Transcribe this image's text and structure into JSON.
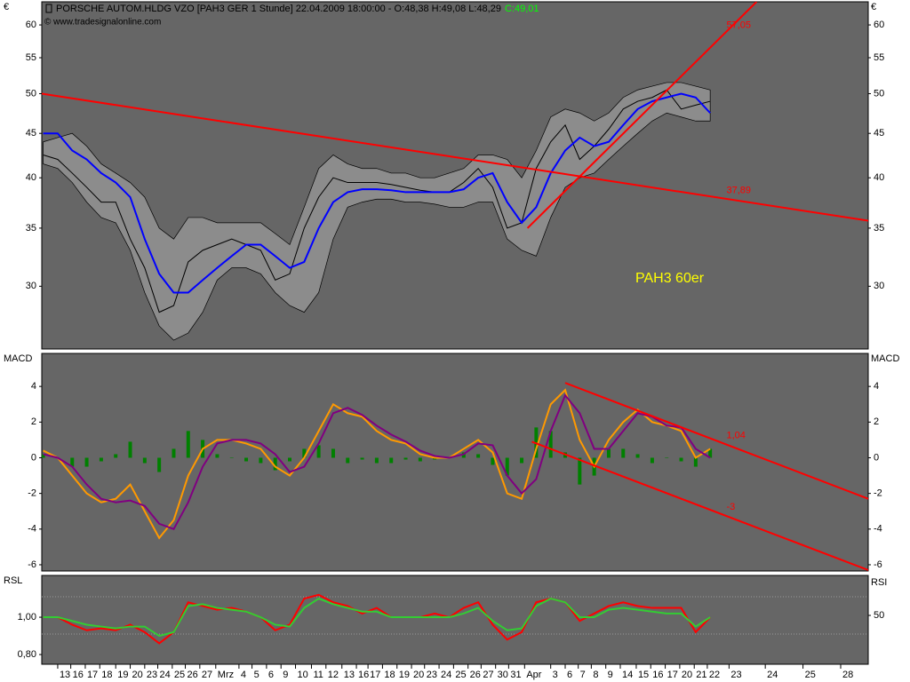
{
  "chart_data": [
    {
      "type": "line",
      "title": "PORSCHE AUTOM.HLDG VZO [PAH3 GER  1 Stunde] 22.04.2009 18:00:00 - O:48,38 H:49,08 L:48,29",
      "last_label": "C:49,01",
      "subtitle": "© www.tradesignalonline.com",
      "annotation": "PAH3 60er",
      "y_label": "€",
      "mirror_yticks": true,
      "log_scale": true,
      "xlim": [
        -1.1,
        55.9
      ],
      "ylim": [
        25.4,
        63.8
      ],
      "yticks": [
        30,
        35,
        40,
        45,
        50,
        55,
        60
      ],
      "x": [
        -1,
        0,
        1,
        2,
        3,
        4,
        5,
        6,
        7,
        8,
        9,
        10,
        11,
        12,
        13,
        14,
        15,
        16,
        17,
        18,
        19,
        20,
        21,
        22,
        23,
        24,
        25,
        26,
        27,
        28,
        29,
        30,
        31,
        32,
        33,
        34,
        35,
        36,
        37,
        38,
        39,
        40,
        41,
        42,
        43,
        44,
        45
      ],
      "band": {
        "color": "#8c8c8c",
        "upper": [
          44,
          44.5,
          45,
          43.5,
          41.5,
          40.5,
          39.5,
          38,
          35,
          34,
          36,
          36,
          35.5,
          35.5,
          35.5,
          35.5,
          34.5,
          33.5,
          37,
          41,
          42.5,
          41.5,
          41,
          41,
          40.5,
          40.5,
          40,
          40,
          40.5,
          41,
          42.5,
          42.5,
          42,
          40,
          43,
          47,
          48,
          47.5,
          46.5,
          47.5,
          49.5,
          50.5,
          51,
          51.5,
          51.5,
          51,
          50.5
        ],
        "lower": [
          41.5,
          41,
          39.5,
          37.5,
          36,
          35.5,
          33,
          29.5,
          27,
          26,
          26.5,
          28,
          30.5,
          31.5,
          31.5,
          31,
          29.5,
          28.5,
          28,
          29.5,
          34,
          37,
          37.5,
          37.8,
          37.8,
          37.5,
          37.5,
          37.3,
          37,
          37,
          37.5,
          37.5,
          34,
          33,
          32.5,
          36,
          39,
          40,
          40.5,
          42,
          43.5,
          45,
          46.5,
          47.5,
          47,
          46.5,
          46.5
        ]
      },
      "series": [
        {
          "color": "#000000",
          "width": 1,
          "values": [
            42.5,
            42,
            40.5,
            39,
            37.5,
            37.5,
            34,
            31.5,
            28,
            28.5,
            32,
            33,
            33.5,
            34,
            33.5,
            33,
            30.5,
            31,
            35,
            38,
            40,
            39.5,
            39.5,
            39.5,
            39.3,
            39,
            38.7,
            38.5,
            38.5,
            39.5,
            41,
            39,
            35,
            35.5,
            41,
            44,
            46,
            42,
            43.5,
            45.5,
            48,
            49,
            49.5,
            50.5,
            48,
            48.5,
            49
          ]
        },
        {
          "color": "#0000ff",
          "width": 2,
          "values": [
            45,
            45,
            43,
            42,
            40.5,
            39.5,
            38,
            34,
            31,
            29.5,
            29.5,
            30.5,
            31.5,
            32.5,
            33.5,
            33.5,
            32.5,
            31.5,
            32,
            35,
            37.5,
            38.5,
            38.8,
            38.8,
            38.7,
            38.5,
            38.5,
            38.5,
            38.5,
            38.8,
            40,
            40.5,
            37.5,
            35.5,
            37,
            40.5,
            43,
            44.5,
            43.5,
            44,
            46,
            48,
            49,
            49.5,
            50,
            49.5,
            47.5
          ]
        }
      ],
      "trendlines": [
        {
          "color": "#ff0000",
          "x": [
            -1.1,
            55.9
          ],
          "values": [
            50,
            35.7
          ],
          "label": "37,89"
        },
        {
          "color": "#ff0000",
          "x": [
            32.4,
            48.2
          ],
          "values": [
            35,
            63.8
          ],
          "label": "57,05"
        }
      ]
    },
    {
      "type": "line",
      "y_label": "MACD",
      "mirror_yticks": true,
      "xlim": [
        -1.1,
        55.9
      ],
      "ylim": [
        -6.35,
        5.85
      ],
      "yticks": [
        -6,
        -4,
        -2,
        0,
        2,
        4
      ],
      "x": [
        -1,
        0,
        1,
        2,
        3,
        4,
        5,
        6,
        7,
        8,
        9,
        10,
        11,
        12,
        13,
        14,
        15,
        16,
        17,
        18,
        19,
        20,
        21,
        22,
        23,
        24,
        25,
        26,
        27,
        28,
        29,
        30,
        31,
        32,
        33,
        34,
        35,
        36,
        37,
        38,
        39,
        40,
        41,
        42,
        43,
        44,
        45
      ],
      "series": [
        {
          "kind": "bar",
          "color": "#008000",
          "values": [
            0.2,
            0,
            -0.5,
            -0.5,
            -0.2,
            0.2,
            0.9,
            -0.3,
            -0.8,
            0.5,
            1.5,
            1,
            0.2,
            0,
            -0.2,
            -0.3,
            -0.7,
            -0.2,
            0.5,
            0.7,
            0.5,
            -0.3,
            -0.1,
            -0.3,
            -0.3,
            -0.1,
            -0.2,
            -0.1,
            0,
            0.3,
            0.2,
            -0.4,
            -1,
            -0.3,
            1.7,
            1.5,
            0.3,
            -1.5,
            -1,
            0.5,
            0.5,
            0.2,
            -0.3,
            0,
            -0.2,
            -0.5,
            0.5
          ]
        },
        {
          "color": "#ff9900",
          "width": 2,
          "values": [
            0.4,
            0,
            -1,
            -2,
            -2.5,
            -2.3,
            -1.5,
            -3,
            -4.5,
            -3.5,
            -1,
            0.5,
            1,
            1,
            0.8,
            0.5,
            -0.5,
            -1,
            0,
            1.5,
            3,
            2.5,
            2.3,
            1.5,
            1,
            0.8,
            0.2,
            0,
            0,
            0.5,
            1,
            0.3,
            -2,
            -2.3,
            0.5,
            3,
            3.8,
            1,
            -0.5,
            1,
            2,
            2.7,
            2,
            1.8,
            1.5,
            0,
            0.5
          ]
        },
        {
          "color": "#800080",
          "width": 2,
          "values": [
            0.2,
            0,
            -0.5,
            -1.5,
            -2.3,
            -2.5,
            -2.4,
            -2.7,
            -3.7,
            -4,
            -2.5,
            -0.5,
            0.8,
            1,
            1,
            0.8,
            0.2,
            -0.8,
            -0.5,
            0.8,
            2.5,
            2.8,
            2.4,
            1.8,
            1.3,
            0.9,
            0.4,
            0.1,
            0,
            0.2,
            0.8,
            0.7,
            -1,
            -2,
            -1.2,
            1.5,
            3.5,
            2.5,
            0.5,
            0.5,
            1.5,
            2.5,
            2.3,
            1.8,
            1.7,
            0.5,
            0
          ]
        }
      ],
      "trendlines": [
        {
          "color": "#ff0000",
          "x": [
            35,
            55.9
          ],
          "values": [
            4.2,
            -2.3
          ],
          "label": "1,04"
        },
        {
          "color": "#ff0000",
          "x": [
            32.7,
            55.9
          ],
          "values": [
            0.9,
            -6.3
          ],
          "label": "-3"
        }
      ]
    },
    {
      "type": "line",
      "y_label": "RSL",
      "y2_label": "RSI",
      "xlim": [
        -1.1,
        55.9
      ],
      "ylim": [
        0.748,
        1.224
      ],
      "yticks": [
        {
          "value": 0.8,
          "label": "0,80"
        },
        {
          "value": 1.0,
          "label": "1,00"
        }
      ],
      "y2lim": [
        -2.4,
        92.9
      ],
      "y2ticks": [
        50
      ],
      "y2_levels": [
        30,
        70
      ],
      "x": [
        -1,
        0,
        1,
        2,
        3,
        4,
        5,
        6,
        7,
        8,
        9,
        10,
        11,
        12,
        13,
        14,
        15,
        16,
        17,
        18,
        19,
        20,
        21,
        22,
        23,
        24,
        25,
        26,
        27,
        28,
        29,
        30,
        31,
        32,
        33,
        34,
        35,
        36,
        37,
        38,
        39,
        40,
        41,
        42,
        43,
        44,
        45
      ],
      "series": [
        {
          "color": "#ff0000",
          "width": 2,
          "values": [
            1.0,
            1.0,
            0.96,
            0.93,
            0.94,
            0.93,
            0.96,
            0.92,
            0.86,
            0.92,
            1.08,
            1.06,
            1.04,
            1.05,
            1.03,
            1.0,
            0.93,
            0.96,
            1.1,
            1.12,
            1.08,
            1.06,
            1.02,
            1.05,
            1.0,
            1.0,
            1.0,
            1.02,
            1.0,
            1.05,
            1.08,
            0.96,
            0.88,
            0.92,
            1.08,
            1.1,
            1.08,
            0.98,
            1.02,
            1.06,
            1.08,
            1.06,
            1.05,
            1.05,
            1.05,
            0.92,
            1.0
          ]
        },
        {
          "color": "#33cc33",
          "width": 2,
          "values": [
            1.0,
            1.0,
            0.98,
            0.96,
            0.95,
            0.94,
            0.95,
            0.95,
            0.9,
            0.92,
            1.06,
            1.07,
            1.05,
            1.04,
            1.03,
            1.0,
            0.96,
            0.95,
            1.05,
            1.1,
            1.07,
            1.05,
            1.03,
            1.03,
            1.0,
            1.0,
            1.0,
            1.0,
            1.0,
            1.02,
            1.05,
            0.98,
            0.93,
            0.94,
            1.06,
            1.1,
            1.08,
            1.0,
            1.0,
            1.04,
            1.05,
            1.04,
            1.03,
            1.02,
            1.02,
            0.95,
            1.0
          ]
        }
      ],
      "xticks": [
        {
          "value": 0,
          "label": "13"
        },
        {
          "value": 0.9,
          "label": "16"
        },
        {
          "value": 1.9,
          "label": "17"
        },
        {
          "value": 2.9,
          "label": "18"
        },
        {
          "value": 4.0,
          "label": "19"
        },
        {
          "value": 5.0,
          "label": "20"
        },
        {
          "value": 6.0,
          "label": "23"
        },
        {
          "value": 6.9,
          "label": "24"
        },
        {
          "value": 7.9,
          "label": "25"
        },
        {
          "value": 8.8,
          "label": "26"
        },
        {
          "value": 9.8,
          "label": "27"
        },
        {
          "value": 10.9,
          "label": "Mrz"
        },
        {
          "value": 12.5,
          "label": "4"
        },
        {
          "value": 13.4,
          "label": "5"
        },
        {
          "value": 14.4,
          "label": "6"
        },
        {
          "value": 15.4,
          "label": "9"
        },
        {
          "value": 16.4,
          "label": "10"
        },
        {
          "value": 17.5,
          "label": "11"
        },
        {
          "value": 18.5,
          "label": "12"
        },
        {
          "value": 19.6,
          "label": "13"
        },
        {
          "value": 20.6,
          "label": "16"
        },
        {
          "value": 21.4,
          "label": "17"
        },
        {
          "value": 22.4,
          "label": "18"
        },
        {
          "value": 23.4,
          "label": "19"
        },
        {
          "value": 24.4,
          "label": "20"
        },
        {
          "value": 25.3,
          "label": "23"
        },
        {
          "value": 26.3,
          "label": "24"
        },
        {
          "value": 27.3,
          "label": "25"
        },
        {
          "value": 28.3,
          "label": "26"
        },
        {
          "value": 29.2,
          "label": "27"
        },
        {
          "value": 30.2,
          "label": "30"
        },
        {
          "value": 31.1,
          "label": "31"
        },
        {
          "value": 32.2,
          "label": "Apr"
        },
        {
          "value": 34.0,
          "label": "3"
        },
        {
          "value": 35.0,
          "label": "6"
        },
        {
          "value": 35.9,
          "label": "7"
        },
        {
          "value": 36.8,
          "label": "8"
        },
        {
          "value": 37.8,
          "label": "9"
        },
        {
          "value": 38.8,
          "label": "14"
        },
        {
          "value": 39.9,
          "label": "15"
        },
        {
          "value": 40.9,
          "label": "16"
        },
        {
          "value": 41.9,
          "label": "17"
        },
        {
          "value": 42.9,
          "label": "20"
        },
        {
          "value": 43.9,
          "label": "21"
        },
        {
          "value": 44.8,
          "label": "22"
        },
        {
          "value": 46.3,
          "label": "23"
        },
        {
          "value": 48.8,
          "label": "24"
        },
        {
          "value": 51.4,
          "label": "25"
        },
        {
          "value": 54.0,
          "label": "28"
        }
      ]
    }
  ]
}
